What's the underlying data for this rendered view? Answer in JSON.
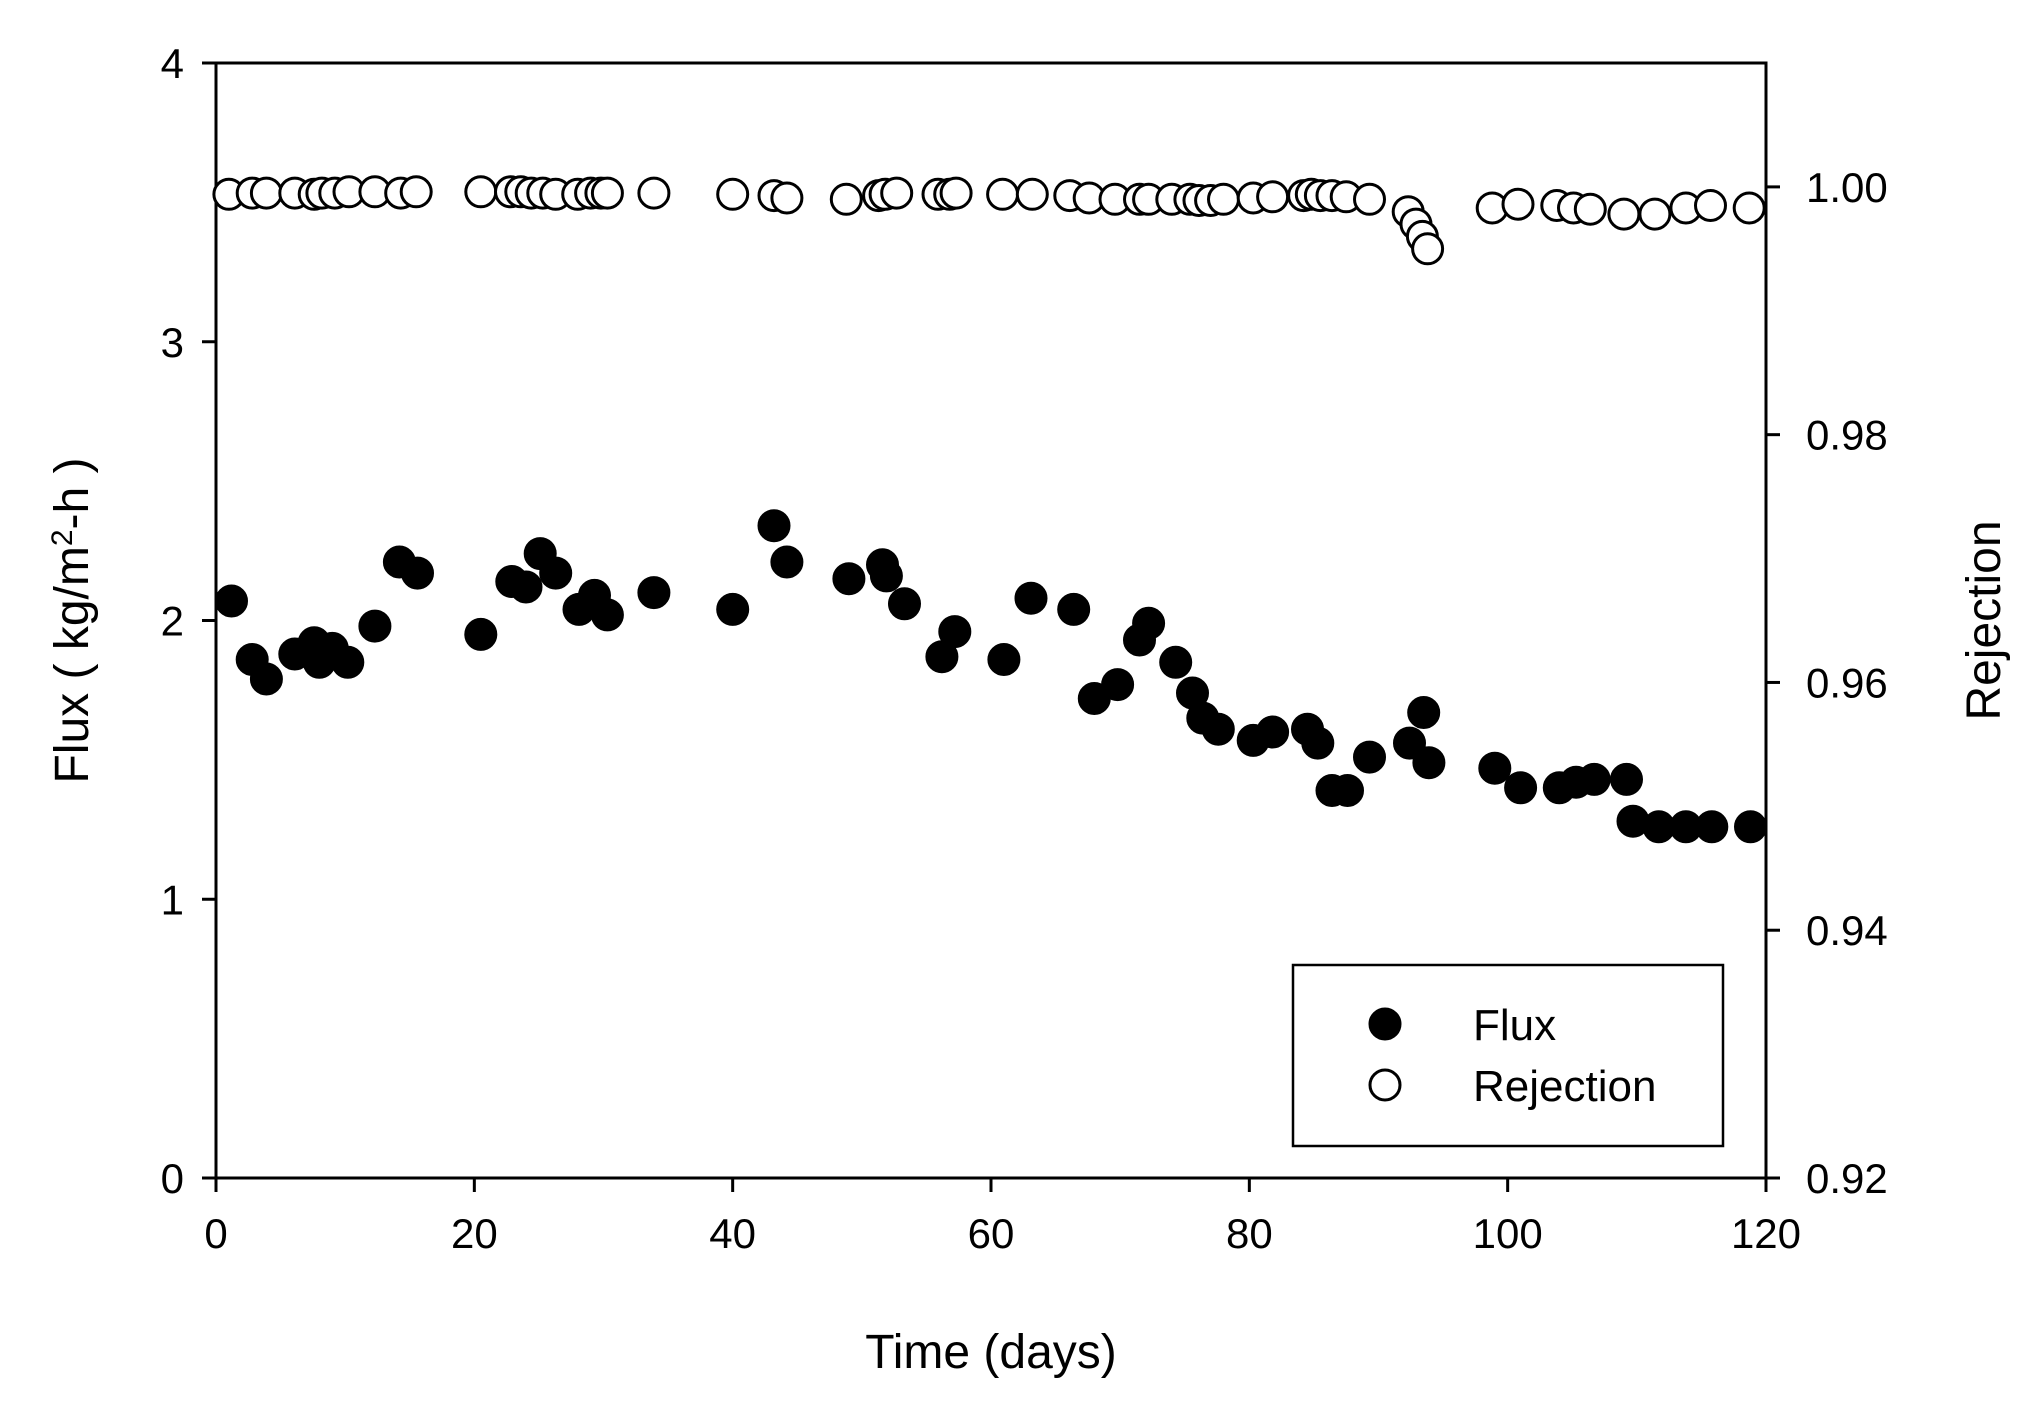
{
  "chart_data": {
    "type": "scatter",
    "title": "",
    "xlabel": "Time (days)",
    "ylabel_left": {
      "pre": "Flux ( kg/m",
      "sup": "2",
      "post": "-h )"
    },
    "ylabel_right": "Rejection",
    "xlim": [
      0,
      120
    ],
    "ylim_left": [
      0,
      4
    ],
    "ylim_right": [
      0.92,
      1.01
    ],
    "xticks": [
      0,
      20,
      40,
      60,
      80,
      100,
      120
    ],
    "xtick_labels": [
      "0",
      "20",
      "40",
      "60",
      "80",
      "100",
      "120"
    ],
    "yticks_left": [
      0,
      1,
      2,
      3,
      4
    ],
    "ytick_labels_left": [
      "0",
      "1",
      "2",
      "3",
      "4"
    ],
    "yticks_right": [
      0.92,
      0.94,
      0.96,
      0.98,
      1.0
    ],
    "ytick_labels_right": [
      "0.92",
      "0.94",
      "0.96",
      "0.98",
      "1.00"
    ],
    "grid": false,
    "legend_position": "bottom-right",
    "series": [
      {
        "name": "Flux",
        "axis": "left",
        "marker": "filled-circle",
        "x": [
          1.2,
          2.8,
          3.9,
          6.1,
          7.6,
          8.0,
          9.0,
          10.2,
          12.3,
          14.2,
          15.6,
          20.5,
          22.9,
          24.0,
          25.1,
          26.3,
          28.1,
          29.3,
          30.3,
          33.9,
          40.0,
          43.2,
          44.2,
          49.0,
          51.6,
          51.9,
          53.3,
          56.2,
          57.2,
          61.0,
          63.1,
          66.4,
          68.0,
          69.8,
          71.5,
          72.2,
          74.3,
          75.6,
          76.4,
          77.6,
          80.3,
          81.8,
          84.5,
          85.3,
          86.4,
          87.6,
          89.3,
          92.4,
          93.5,
          93.9,
          99.0,
          101.0,
          104.0,
          105.3,
          106.7,
          109.2,
          109.7,
          111.7,
          113.8,
          115.8,
          118.8
        ],
        "y": [
          2.07,
          1.86,
          1.79,
          1.88,
          1.92,
          1.85,
          1.9,
          1.85,
          1.98,
          2.21,
          2.17,
          1.95,
          2.14,
          2.12,
          2.24,
          2.17,
          2.04,
          2.09,
          2.02,
          2.1,
          2.04,
          2.34,
          2.21,
          2.15,
          2.2,
          2.16,
          2.06,
          1.87,
          1.96,
          1.86,
          2.08,
          2.04,
          1.72,
          1.77,
          1.93,
          1.99,
          1.85,
          1.74,
          1.65,
          1.61,
          1.57,
          1.6,
          1.61,
          1.56,
          1.39,
          1.39,
          1.51,
          1.56,
          1.67,
          1.49,
          1.47,
          1.4,
          1.4,
          1.42,
          1.43,
          1.43,
          1.28,
          1.26,
          1.26,
          1.26,
          1.26
        ]
      },
      {
        "name": "Rejection",
        "axis": "right",
        "marker": "open-circle",
        "x": [
          1.0,
          2.8,
          3.9,
          6.1,
          7.6,
          8.2,
          9.2,
          10.3,
          12.3,
          14.3,
          15.5,
          20.5,
          22.8,
          23.6,
          24.4,
          25.3,
          26.3,
          28.0,
          29.0,
          29.8,
          30.3,
          33.9,
          40.0,
          43.2,
          44.2,
          48.8,
          51.3,
          51.8,
          52.7,
          55.9,
          56.8,
          57.3,
          60.9,
          63.2,
          66.1,
          67.6,
          69.6,
          71.5,
          72.2,
          74.0,
          75.4,
          76.1,
          77.0,
          78.0,
          80.3,
          81.8,
          84.2,
          84.8,
          85.5,
          86.4,
          87.5,
          89.3,
          92.3,
          92.9,
          93.4,
          93.8,
          98.8,
          100.8,
          103.8,
          105.1,
          106.4,
          109.0,
          111.4,
          113.8,
          115.7,
          118.7
        ],
        "y": [
          0.9994,
          0.9995,
          0.9995,
          0.9995,
          0.9994,
          0.9995,
          0.9995,
          0.9996,
          0.9996,
          0.9995,
          0.9996,
          0.9996,
          0.9996,
          0.9996,
          0.9995,
          0.9995,
          0.9994,
          0.9994,
          0.9995,
          0.9995,
          0.9995,
          0.9995,
          0.9994,
          0.9993,
          0.9991,
          0.999,
          0.9993,
          0.9994,
          0.9995,
          0.9994,
          0.9994,
          0.9995,
          0.9994,
          0.9994,
          0.9993,
          0.9991,
          0.999,
          0.999,
          0.999,
          0.999,
          0.999,
          0.9989,
          0.9989,
          0.999,
          0.9991,
          0.9992,
          0.9993,
          0.9994,
          0.9993,
          0.9993,
          0.9992,
          0.999,
          0.998,
          0.997,
          0.996,
          0.995,
          0.9983,
          0.9986,
          0.9985,
          0.9983,
          0.9982,
          0.9978,
          0.9978,
          0.9983,
          0.9985,
          0.9983
        ]
      }
    ],
    "legend": [
      {
        "label": "Flux",
        "marker": "filled-circle"
      },
      {
        "label": "Rejection",
        "marker": "open-circle"
      }
    ]
  }
}
